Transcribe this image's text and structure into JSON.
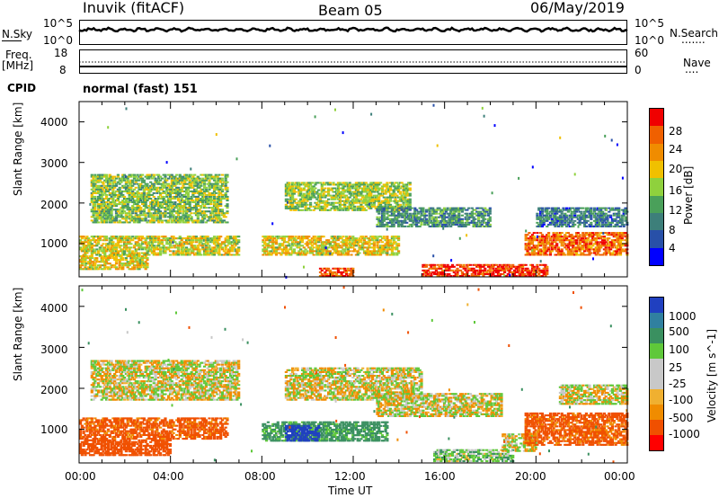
{
  "header": {
    "station": "Inuvik (fitACF)",
    "beam": "Beam 05",
    "date": "06/May/2019"
  },
  "nsky_panel": {
    "left_label": "N.Sky",
    "left_ticks": [
      "10^5",
      "10^0"
    ],
    "right_ticks": [
      "10^5",
      "10^0"
    ],
    "right_label": "N.Search",
    "right_legend": "......."
  },
  "freq_panel": {
    "left_label_1": "Freq.",
    "left_label_2": "[MHz]",
    "left_ticks": [
      "18",
      "8"
    ],
    "right_ticks": [
      "60",
      "0"
    ],
    "right_label": "Nave",
    "right_legend": "...."
  },
  "cpid": {
    "label": "CPID",
    "value": "normal (fast) 151"
  },
  "colors": {
    "power_scale": [
      "#0000ff",
      "#2850a8",
      "#3d7f7a",
      "#4aa05a",
      "#8fd13d",
      "#f0c000",
      "#f08c00",
      "#f06000",
      "#f00000"
    ],
    "velocity_scale": [
      "#ff0000",
      "#f05000",
      "#f08c00",
      "#f0b030",
      "#c8c8c8",
      "#c8c8c8",
      "#5fc83a",
      "#3a9060",
      "#3080a0",
      "#2040c0"
    ]
  },
  "chart_data": [
    {
      "type": "heatmap",
      "title": "",
      "xlabel": "",
      "ylabel": "Slant Range [km]",
      "x_ticks": [
        "00:00",
        "04:00",
        "08:00",
        "12:00",
        "16:00",
        "20:00",
        "00:00"
      ],
      "y_ticks": [
        "1000",
        "2000",
        "3000",
        "4000"
      ],
      "ylim": [
        180,
        4500
      ],
      "colorbar": {
        "label": "Power [dB]",
        "ticks": [
          "4",
          "8",
          "12",
          "16",
          "20",
          "24",
          "28"
        ],
        "range": [
          0,
          30
        ]
      },
      "bands": [
        {
          "t_start": 0.0,
          "t_end": 3.0,
          "range_low": 350,
          "range_high": 700,
          "value": 18
        },
        {
          "t_start": 0.0,
          "t_end": 7.0,
          "range_low": 700,
          "range_high": 1200,
          "value": 17
        },
        {
          "t_start": 0.5,
          "t_end": 6.5,
          "range_low": 1500,
          "range_high": 2700,
          "value": 14
        },
        {
          "t_start": 9.0,
          "t_end": 14.5,
          "range_low": 1800,
          "range_high": 2500,
          "value": 15
        },
        {
          "t_start": 8.0,
          "t_end": 14.0,
          "range_low": 700,
          "range_high": 1200,
          "value": 18
        },
        {
          "t_start": 13.0,
          "t_end": 18.0,
          "range_low": 1400,
          "range_high": 1900,
          "value": 10
        },
        {
          "t_start": 10.5,
          "t_end": 12.0,
          "range_low": 180,
          "range_high": 400,
          "value": 26
        },
        {
          "t_start": 15.0,
          "t_end": 20.5,
          "range_low": 180,
          "range_high": 500,
          "value": 27
        },
        {
          "t_start": 19.5,
          "t_end": 24.0,
          "range_low": 700,
          "range_high": 1300,
          "value": 24
        },
        {
          "t_start": 20.0,
          "t_end": 24.0,
          "range_low": 1400,
          "range_high": 1900,
          "value": 8
        }
      ]
    },
    {
      "type": "heatmap",
      "title": "",
      "xlabel": "Time UT",
      "ylabel": "Slant Range [km]",
      "x_ticks": [
        "00:00",
        "04:00",
        "08:00",
        "12:00",
        "16:00",
        "20:00",
        "00:00"
      ],
      "y_ticks": [
        "1000",
        "2000",
        "3000",
        "4000"
      ],
      "ylim": [
        180,
        4500
      ],
      "colorbar": {
        "label": "Velocity [m s^-1]",
        "ticks": [
          "1000",
          "500",
          "100",
          "25",
          "-25",
          "-100",
          "-500",
          "-1000"
        ],
        "range": [
          -1000,
          1000
        ]
      },
      "bands": [
        {
          "t_start": 0.0,
          "t_end": 4.0,
          "range_low": 350,
          "range_high": 750,
          "value": -300
        },
        {
          "t_start": 0.0,
          "t_end": 6.5,
          "range_low": 750,
          "range_high": 1300,
          "value": -150
        },
        {
          "t_start": 0.5,
          "t_end": 7.0,
          "range_low": 1700,
          "range_high": 2700,
          "value": 0
        },
        {
          "t_start": 9.0,
          "t_end": 15.0,
          "range_low": 1700,
          "range_high": 2500,
          "value": 0
        },
        {
          "t_start": 13.0,
          "t_end": 18.5,
          "range_low": 1300,
          "range_high": 1900,
          "value": 0
        },
        {
          "t_start": 8.0,
          "t_end": 13.5,
          "range_low": 700,
          "range_high": 1200,
          "value": 150
        },
        {
          "t_start": 9.0,
          "t_end": 10.5,
          "range_low": 700,
          "range_high": 1100,
          "value": 900
        },
        {
          "t_start": 15.5,
          "t_end": 19.0,
          "range_low": 200,
          "range_high": 500,
          "value": 60
        },
        {
          "t_start": 18.5,
          "t_end": 20.0,
          "range_low": 450,
          "range_high": 900,
          "value": 0
        },
        {
          "t_start": 19.5,
          "t_end": 24.0,
          "range_low": 600,
          "range_high": 1400,
          "value": -150
        },
        {
          "t_start": 21.0,
          "t_end": 24.0,
          "range_low": 1600,
          "range_high": 2100,
          "value": 0
        }
      ]
    }
  ]
}
